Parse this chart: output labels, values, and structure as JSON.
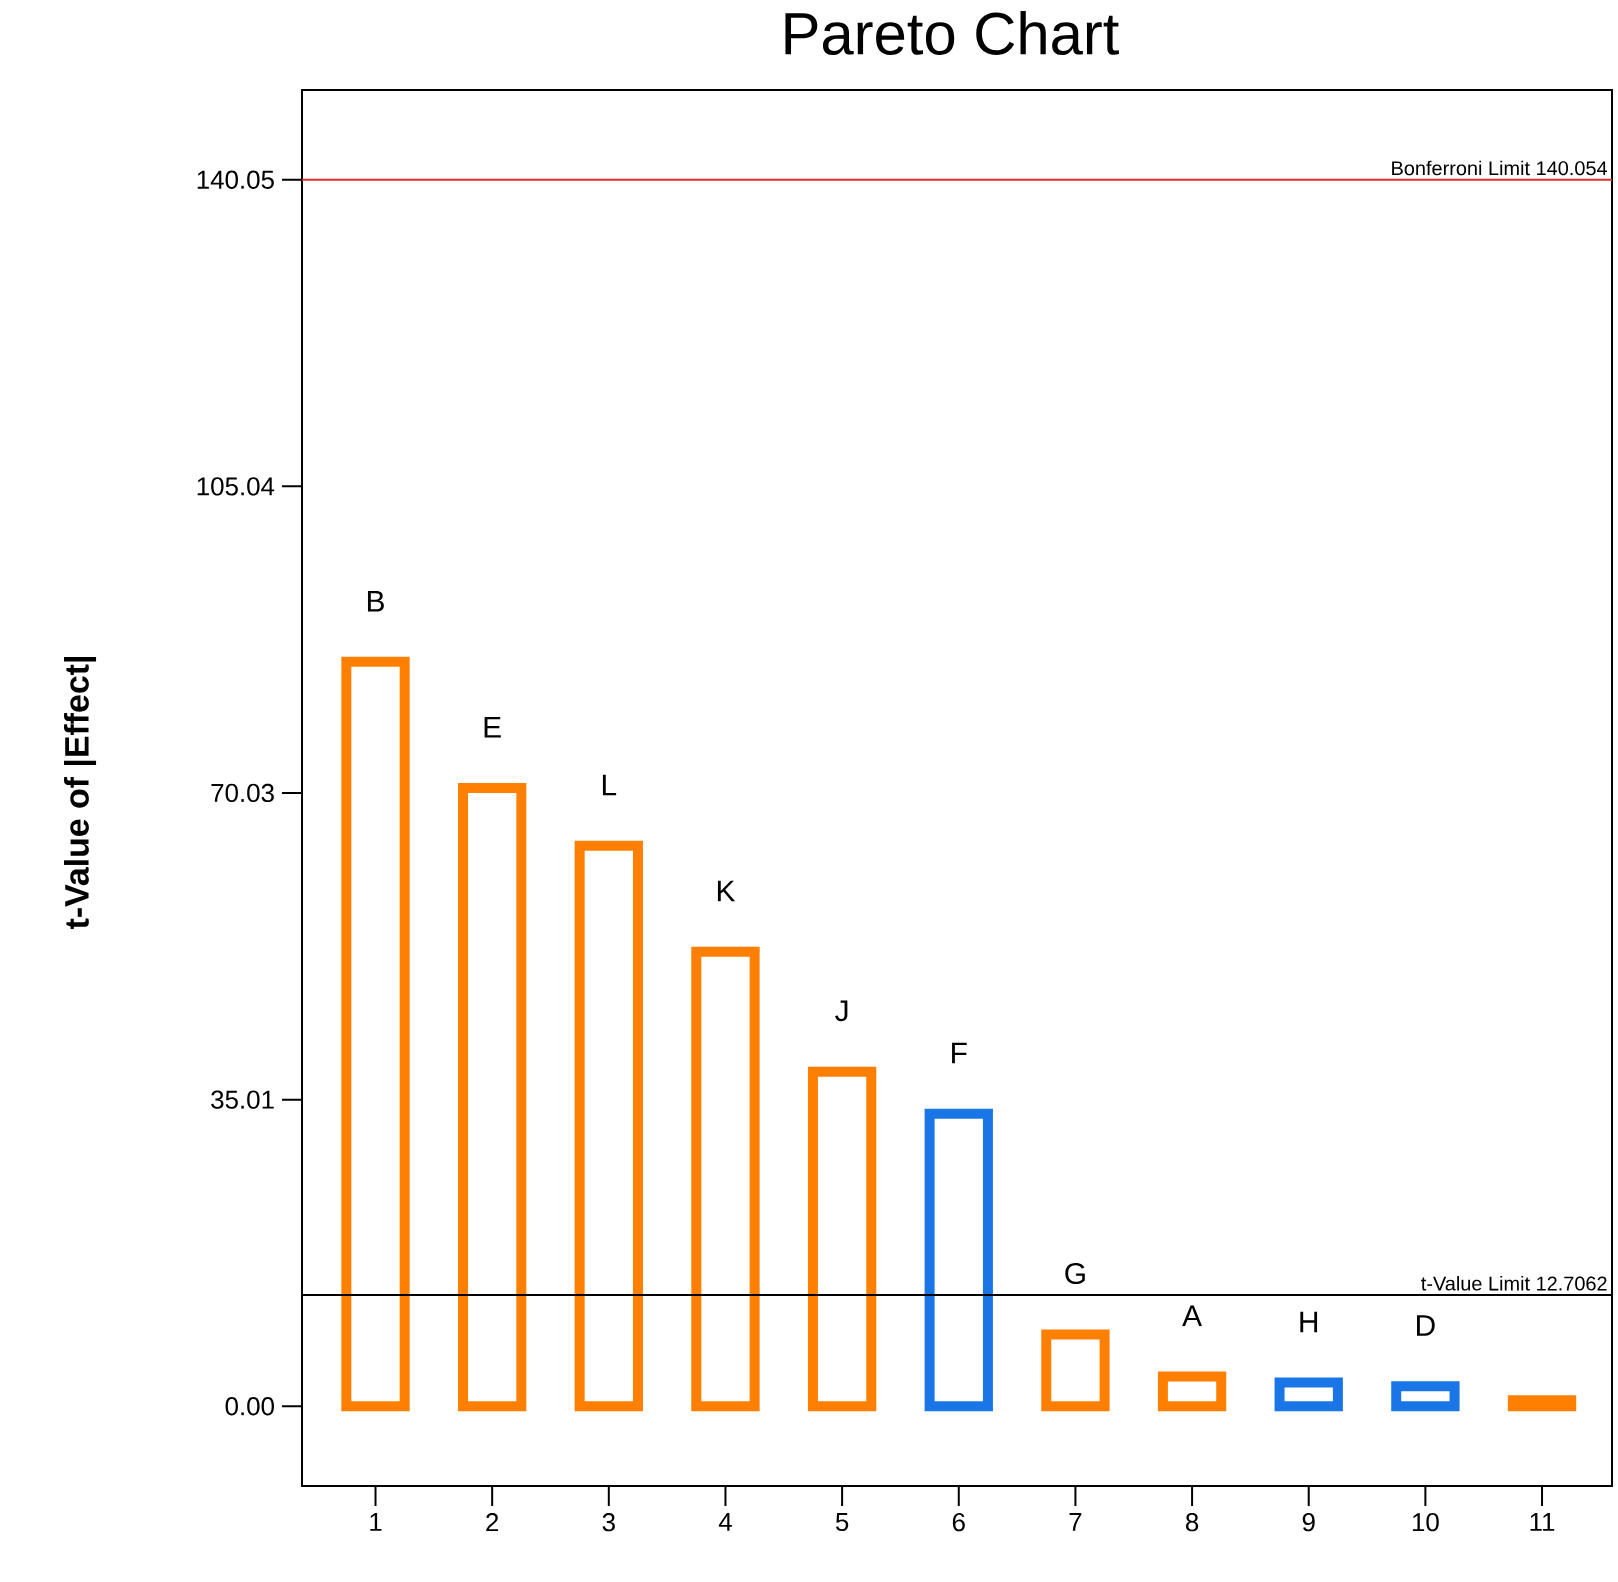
{
  "chart_data": {
    "type": "bar",
    "title": "Pareto Chart",
    "ylabel": "t-Value of |Effect|",
    "categories": [
      "1",
      "2",
      "3",
      "4",
      "5",
      "6",
      "7",
      "8",
      "9",
      "10",
      "11"
    ],
    "values": [
      85.0,
      70.6,
      64.0,
      51.9,
      38.2,
      33.4,
      8.2,
      3.4,
      2.7,
      2.3,
      0.7
    ],
    "colors": [
      "#ff8000",
      "#ff8000",
      "#ff8000",
      "#ff8000",
      "#ff8000",
      "#1a75e6",
      "#ff8000",
      "#ff8000",
      "#1a75e6",
      "#1a75e6",
      "#ff8000"
    ],
    "ylim": [
      -9.1,
      150.3
    ],
    "yticks": [
      {
        "value": 0,
        "label": "0.00"
      },
      35.01,
      70.03,
      105.04,
      140.05
    ],
    "ref_lines": [
      {
        "axis": "y",
        "value": 140.054,
        "label": "Bonferroni Limit 140.054",
        "color": "#d9302a"
      },
      {
        "axis": "y",
        "value": 12.7062,
        "label": "t-Value Limit 12.7062",
        "color": "#000000"
      }
    ],
    "annotations": [
      {
        "text": "B",
        "x": "1",
        "y": 85.0
      },
      {
        "text": "E",
        "x": "2",
        "y": 70.6
      },
      {
        "text": "L",
        "x": "3",
        "y": 64.0
      },
      {
        "text": "K",
        "x": "4",
        "y": 51.9
      },
      {
        "text": "J",
        "x": "5",
        "y": 38.2
      },
      {
        "text": "F",
        "x": "6",
        "y": 33.4
      },
      {
        "text": "G",
        "x": "7",
        "y": 8.2
      },
      {
        "text": "A",
        "x": "8",
        "y": 3.4
      },
      {
        "text": "H",
        "x": "9",
        "y": 2.7
      },
      {
        "text": "D",
        "x": "10",
        "y": 2.3
      }
    ]
  }
}
